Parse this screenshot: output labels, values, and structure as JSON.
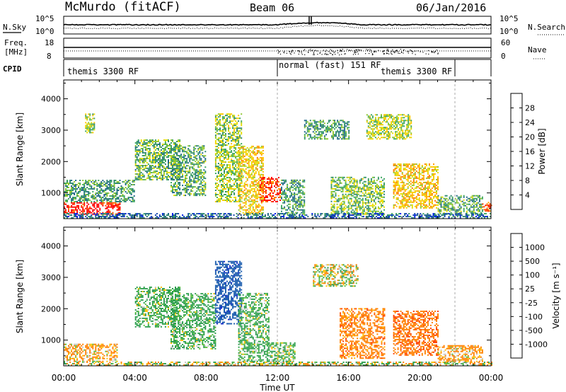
{
  "header": {
    "station": "McMurdo (fitACF)",
    "beam": "Beam 06",
    "date": "06/Jan/2016"
  },
  "panels": {
    "noise": {
      "label_left": "N.Sky",
      "label_right": "N.Search",
      "ticks_left": [
        "10^5",
        "10^0"
      ],
      "ticks_right": [
        "10^5",
        "10^0"
      ]
    },
    "freq": {
      "label_left_1": "Freq.",
      "label_left_2": "[MHz]",
      "label_right": "Nave",
      "ticks_left": [
        "18",
        "8"
      ],
      "ticks_right": [
        "60",
        "0"
      ]
    },
    "cpid": {
      "label": "CPID",
      "segments": [
        "themis 3300 RF",
        "normal (fast) 151 RF",
        "themis 3300 RF"
      ]
    }
  },
  "colorbars": {
    "power": {
      "label": "Power [dB]",
      "ticks": [
        "28",
        "24",
        "20",
        "16",
        "12",
        "8",
        "4"
      ],
      "colors": [
        "#ff0000",
        "#ff4800",
        "#ff7a00",
        "#ffa000",
        "#ffc800",
        "#e8dc00",
        "#90c830",
        "#40a860",
        "#308870",
        "#206888",
        "#1848b0",
        "#0020e8"
      ]
    },
    "velocity": {
      "label": "Velocity [m s⁻¹]",
      "ticks": [
        "1000",
        "500",
        "100",
        "25",
        "-25",
        "-100",
        "-500",
        "-1000"
      ],
      "colors": [
        "#1830c8",
        "#2060b0",
        "#30a050",
        "#60c040",
        "#c8c8c8",
        "#ffc000",
        "#ff8000",
        "#ff4000",
        "#ff0000"
      ]
    }
  },
  "axes": {
    "ylabel": "Slant Range [km]",
    "xlabel": "Time UT"
  },
  "chart_data": [
    {
      "type": "heatmap",
      "title": "Power [dB]",
      "xlabel": "Time UT",
      "ylabel": "Slant Range [km]",
      "x_ticks": [
        "00:00",
        "04:00",
        "08:00",
        "12:00",
        "16:00",
        "20:00",
        "00:00"
      ],
      "xlim": [
        0,
        24
      ],
      "y_ticks": [
        1000,
        2000,
        3000,
        4000
      ],
      "ylim": [
        180,
        4600
      ],
      "clim": [
        0,
        30
      ],
      "regions": [
        {
          "t": [
            0.0,
            3.2
          ],
          "r": [
            300,
            700
          ],
          "value": 29
        },
        {
          "t": [
            0.0,
            4.0
          ],
          "r": [
            700,
            1400
          ],
          "value": 10
        },
        {
          "t": [
            1.2,
            1.7
          ],
          "r": [
            2900,
            3500
          ],
          "value": 14
        },
        {
          "t": [
            4.0,
            6.5
          ],
          "r": [
            1400,
            2700
          ],
          "value": 12
        },
        {
          "t": [
            6.0,
            8.0
          ],
          "r": [
            900,
            2500
          ],
          "value": 11
        },
        {
          "t": [
            8.5,
            10.0
          ],
          "r": [
            700,
            3500
          ],
          "value": 14
        },
        {
          "t": [
            9.8,
            11.2
          ],
          "r": [
            300,
            2500
          ],
          "value": 18
        },
        {
          "t": [
            11.0,
            12.2
          ],
          "r": [
            700,
            1500
          ],
          "value": 27
        },
        {
          "t": [
            12.2,
            13.5
          ],
          "r": [
            300,
            1400
          ],
          "value": 10
        },
        {
          "t": [
            13.5,
            16.0
          ],
          "r": [
            2700,
            3300
          ],
          "value": 10
        },
        {
          "t": [
            15.0,
            18.0
          ],
          "r": [
            300,
            1500
          ],
          "value": 13
        },
        {
          "t": [
            17.0,
            19.5
          ],
          "r": [
            2700,
            3500
          ],
          "value": 15
        },
        {
          "t": [
            18.5,
            21.0
          ],
          "r": [
            500,
            1900
          ],
          "value": 19
        },
        {
          "t": [
            21.0,
            23.5
          ],
          "r": [
            300,
            900
          ],
          "value": 11
        },
        {
          "t": [
            23.5,
            24.0
          ],
          "r": [
            400,
            700
          ],
          "value": 26
        },
        {
          "t": [
            0.0,
            24.0
          ],
          "r": [
            180,
            350
          ],
          "value": 6
        }
      ]
    },
    {
      "type": "heatmap",
      "title": "Velocity [m s⁻¹]",
      "xlabel": "Time UT",
      "ylabel": "Slant Range [km]",
      "x_ticks": [
        "00:00",
        "04:00",
        "08:00",
        "12:00",
        "16:00",
        "20:00",
        "00:00"
      ],
      "xlim": [
        0,
        24
      ],
      "y_ticks": [
        1000,
        2000,
        3000,
        4000
      ],
      "ylim": [
        180,
        4600
      ],
      "clim": [
        -1000,
        1000
      ],
      "regions": [
        {
          "t": [
            0.0,
            3.0
          ],
          "r": [
            300,
            850
          ],
          "value": -150
        },
        {
          "t": [
            0.0,
            24.0
          ],
          "r": [
            180,
            300
          ],
          "value": 0
        },
        {
          "t": [
            4.0,
            6.5
          ],
          "r": [
            1400,
            2700
          ],
          "value": 200
        },
        {
          "t": [
            6.0,
            8.5
          ],
          "r": [
            700,
            2500
          ],
          "value": 200
        },
        {
          "t": [
            8.5,
            10.0
          ],
          "r": [
            1500,
            3500
          ],
          "value": 800
        },
        {
          "t": [
            9.8,
            11.5
          ],
          "r": [
            300,
            2500
          ],
          "value": 200
        },
        {
          "t": [
            11.5,
            13.0
          ],
          "r": [
            300,
            900
          ],
          "value": 150
        },
        {
          "t": [
            14.0,
            16.5
          ],
          "r": [
            2700,
            3400
          ],
          "value": 0
        },
        {
          "t": [
            15.5,
            18.0
          ],
          "r": [
            400,
            2000
          ],
          "value": -300
        },
        {
          "t": [
            18.5,
            21.0
          ],
          "r": [
            500,
            1900
          ],
          "value": -400
        },
        {
          "t": [
            21.0,
            23.5
          ],
          "r": [
            300,
            800
          ],
          "value": -200
        }
      ]
    }
  ]
}
